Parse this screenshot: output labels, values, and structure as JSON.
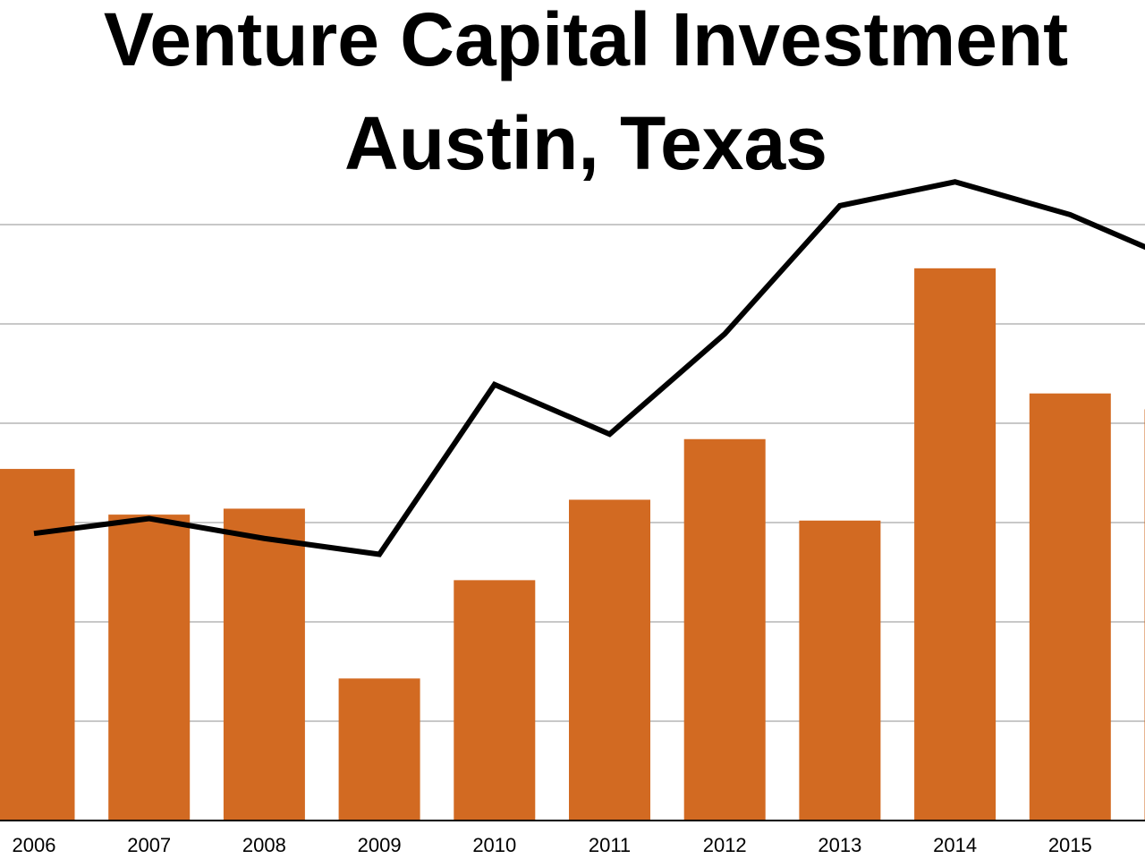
{
  "chart_data": {
    "type": "bar+line",
    "title": "Venture Capital Investment",
    "subtitle": "Austin, Texas",
    "xlabel": "",
    "ylabel": "",
    "categories": [
      "2006",
      "2007",
      "2008",
      "2009",
      "2010",
      "2011",
      "2012",
      "2013",
      "2014",
      "2015",
      ""
    ],
    "series": [
      {
        "type": "bar",
        "values": [
          3.54,
          3.08,
          3.14,
          1.43,
          2.42,
          3.23,
          3.84,
          3.02,
          5.56,
          4.3,
          4.14
        ]
      },
      {
        "type": "line",
        "values": [
          2.89,
          3.04,
          2.84,
          2.68,
          4.39,
          3.89,
          4.9,
          6.19,
          6.43,
          6.1,
          5.6
        ]
      }
    ],
    "ylim": [
      0,
      6
    ],
    "y_axis_labels_visible": false,
    "grid": true,
    "colors": {
      "bar": "#D26A22",
      "line": "#000000",
      "grid": "#C8C8C8"
    }
  }
}
